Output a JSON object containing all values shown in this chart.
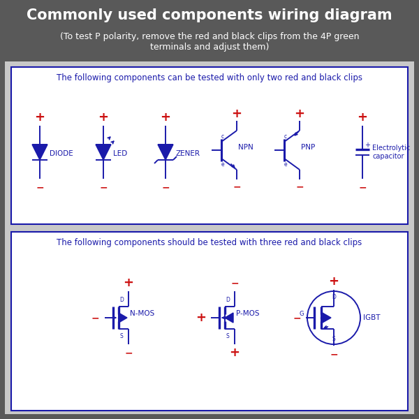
{
  "title": "Commonly used components wiring diagram",
  "subtitle": "(To test P polarity, remove the red and black clips from the 4P green\nterminals and adjust them)",
  "bg_color": "#595959",
  "panel_bg": "#d0d0d0",
  "inner_bg": "#ffffff",
  "title_color": "#ffffff",
  "subtitle_color": "#ffffff",
  "blue_color": "#1a1aaa",
  "red_color": "#cc1111",
  "box1_text": "The following components can be tested with only two red and black clips",
  "box2_text": "The following components should be tested with three red and black clips"
}
